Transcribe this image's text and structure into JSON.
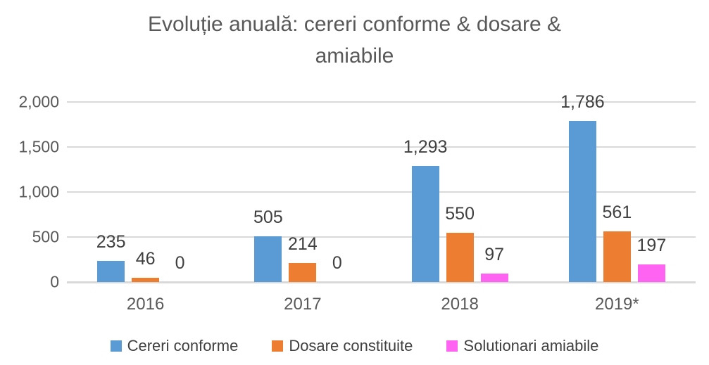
{
  "chart_data": {
    "type": "bar",
    "title": "Evoluție anuală: cereri conforme & dosare & amiabile",
    "categories": [
      "2016",
      "2017",
      "2018",
      "2019*"
    ],
    "series": [
      {
        "name": "Cereri conforme",
        "color": "#5B9BD5",
        "values": [
          235,
          505,
          1293,
          1786
        ],
        "labels": [
          "235",
          "505",
          "1,293",
          "1,786"
        ]
      },
      {
        "name": "Dosare constituite",
        "color": "#ED7D31",
        "values": [
          46,
          214,
          550,
          561
        ],
        "labels": [
          "46",
          "214",
          "550",
          "561"
        ]
      },
      {
        "name": "Solutionari amiabile",
        "color": "#FF63F2",
        "values": [
          0,
          0,
          97,
          197
        ],
        "labels": [
          "0",
          "0",
          "97",
          "197"
        ]
      }
    ],
    "xlabel": "",
    "ylabel": "",
    "ylim": [
      0,
      2000
    ],
    "y_axis": {
      "ticks": [
        {
          "value": 0,
          "label": "0"
        },
        {
          "value": 500,
          "label": "500"
        },
        {
          "value": 1000,
          "label": "1,000"
        },
        {
          "value": 1500,
          "label": "1,500"
        },
        {
          "value": 2000,
          "label": "2,000"
        }
      ]
    },
    "grid": true,
    "legend_position": "bottom",
    "colors": {
      "title_text": "#595959",
      "axis_text": "#595959",
      "data_label_text": "#404040",
      "gridline": "#D9D9D9",
      "background": "#FFFFFF"
    }
  }
}
